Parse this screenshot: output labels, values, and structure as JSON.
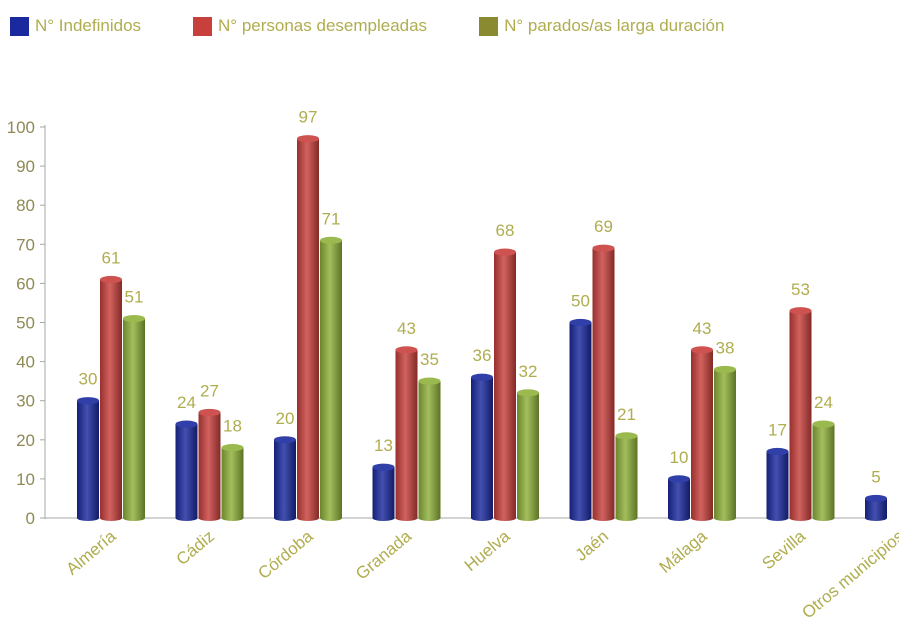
{
  "colors": {
    "label_text": "#b0ad4f",
    "axis_text": "#8f8a55",
    "axis_line": "#a7a7a7"
  },
  "chart_data": {
    "type": "bar",
    "categories": [
      "Almería",
      "Cádiz",
      "Córdoba",
      "Granada",
      "Huelva",
      "Jaén",
      "Málaga",
      "Sevilla",
      "Otros municipios"
    ],
    "series": [
      {
        "name": "N° Indefinidos",
        "color": "#1a2a9e",
        "values": [
          30,
          24,
          20,
          13,
          36,
          50,
          10,
          17,
          5
        ]
      },
      {
        "name": "N° personas desempleadas",
        "color": "#c8403c",
        "values": [
          61,
          27,
          97,
          43,
          68,
          69,
          43,
          53,
          null
        ]
      },
      {
        "name": "N° parados/as larga duración",
        "color": "#8fb13a",
        "values": [
          51,
          18,
          71,
          35,
          32,
          21,
          38,
          24,
          null
        ]
      }
    ],
    "ylim": [
      0,
      100
    ],
    "yticks": [
      0,
      10,
      20,
      30,
      40,
      50,
      60,
      70,
      80,
      90,
      100
    ],
    "grid": false,
    "legend_position": "top-left"
  }
}
